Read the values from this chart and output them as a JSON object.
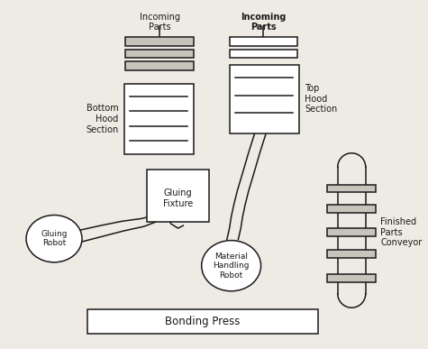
{
  "bg_color": "#eeebe5",
  "line_color": "#1a1a1a",
  "fill_color": "#c8c4bc",
  "labels": {
    "incoming_parts_left": "Incoming\nParts",
    "incoming_parts_right": "Incoming\nParts",
    "bottom_hood": "Bottom\nHood\nSection",
    "top_hood": "Top\nHood\nSection",
    "gluing_fixture": "Gluing\nFixture",
    "gluing_robot": "Gluing\nRobot",
    "material_robot": "Material\nHandling\nRobot",
    "finished_parts": "Finished\nParts\nConveyor",
    "bonding_press": "Bonding Press"
  },
  "figsize": [
    4.75,
    3.87
  ],
  "dpi": 100
}
